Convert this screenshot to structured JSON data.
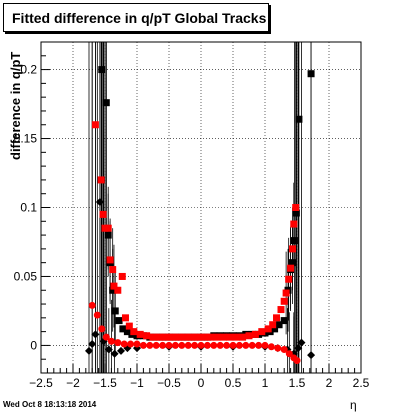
{
  "page": {
    "title": "Fitted difference in q/pT  Global Tracks",
    "footer_timestamp": "Wed Oct  8 18:13:18 2014"
  },
  "chart_data": {
    "type": "scatter",
    "title": "Fitted difference in q/pT  Global Tracks",
    "xlabel": "η",
    "ylabel": "difference in q/pT",
    "xlim": [
      -2.5,
      2.5
    ],
    "ylim": [
      -0.02,
      0.22
    ],
    "xticks": [
      -2.5,
      -2,
      -1.5,
      -1,
      -0.5,
      0,
      0.5,
      1,
      1.5,
      2,
      2.5
    ],
    "xtick_labels": [
      "−2.5",
      "−2",
      "−1.5",
      "−1",
      "−0.5",
      "0",
      "0.5",
      "1",
      "1.5",
      "2",
      "2.5"
    ],
    "yticks": [
      0,
      0.05,
      0.1,
      0.15,
      0.2
    ],
    "ytick_labels": [
      "0",
      "0.05",
      "0.1",
      "0.15",
      "0.2"
    ],
    "grid": true,
    "series": [
      {
        "color": "#000000",
        "marker": "square",
        "points": [
          [
            -1.55,
            0.2
          ],
          [
            -1.48,
            0.176
          ],
          [
            -1.45,
            0.08
          ],
          [
            -1.42,
            0.06
          ],
          [
            -1.38,
            0.04
          ],
          [
            -1.34,
            0.025
          ],
          [
            -1.28,
            0.018
          ],
          [
            -1.22,
            0.012
          ],
          [
            -1.15,
            0.01
          ],
          [
            -1.08,
            0.008
          ],
          [
            -1.0,
            0.007
          ],
          [
            -0.9,
            0.007
          ],
          [
            -0.8,
            0.006
          ],
          [
            -0.7,
            0.006
          ],
          [
            -0.6,
            0.006
          ],
          [
            -0.5,
            0.006
          ],
          [
            -0.4,
            0.006
          ],
          [
            -0.3,
            0.006
          ],
          [
            -0.2,
            0.006
          ],
          [
            -0.1,
            0.006
          ],
          [
            0.0,
            0.006
          ],
          [
            0.1,
            0.006
          ],
          [
            0.2,
            0.007
          ],
          [
            0.3,
            0.007
          ],
          [
            0.4,
            0.007
          ],
          [
            0.5,
            0.007
          ],
          [
            0.6,
            0.007
          ],
          [
            0.7,
            0.008
          ],
          [
            0.8,
            0.008
          ],
          [
            0.9,
            0.008
          ],
          [
            1.0,
            0.009
          ],
          [
            1.08,
            0.01
          ],
          [
            1.15,
            0.012
          ],
          [
            1.22,
            0.015
          ],
          [
            1.3,
            0.018
          ],
          [
            1.36,
            0.04
          ],
          [
            1.4,
            0.055
          ],
          [
            1.43,
            0.06
          ],
          [
            1.46,
            0.076
          ],
          [
            1.49,
            0.096
          ],
          [
            1.53,
            0.164
          ],
          [
            1.72,
            0.197
          ]
        ]
      },
      {
        "color": "#000000",
        "marker": "diamond",
        "points": [
          [
            -1.75,
            -0.004
          ],
          [
            -1.7,
            0.001
          ],
          [
            -1.65,
            0.008
          ],
          [
            -1.58,
            0.104
          ],
          [
            -1.52,
            0.003
          ],
          [
            -1.44,
            -0.003
          ],
          [
            -1.35,
            -0.006
          ],
          [
            -1.25,
            -0.004
          ],
          [
            -1.15,
            -0.002
          ],
          [
            -1.0,
            -0.002
          ],
          [
            -0.5,
            -0.001
          ],
          [
            0.0,
            -0.001
          ],
          [
            0.5,
            -0.001
          ],
          [
            1.0,
            -0.001
          ],
          [
            1.2,
            -0.002
          ],
          [
            1.35,
            -0.003
          ],
          [
            1.45,
            -0.006
          ],
          [
            1.52,
            -0.002
          ],
          [
            1.57,
            0.002
          ],
          [
            1.72,
            -0.007
          ]
        ]
      },
      {
        "color": "#ff0000",
        "marker": "square",
        "points": [
          [
            -1.65,
            0.16
          ],
          [
            -1.56,
            0.12
          ],
          [
            -1.53,
            0.095
          ],
          [
            -1.5,
            0.085
          ],
          [
            -1.45,
            0.085
          ],
          [
            -1.42,
            0.062
          ],
          [
            -1.38,
            0.055
          ],
          [
            -1.36,
            0.043
          ],
          [
            -1.3,
            0.04
          ],
          [
            -1.23,
            0.05
          ],
          [
            -1.18,
            0.02
          ],
          [
            -1.12,
            0.014
          ],
          [
            -1.05,
            0.01
          ],
          [
            -0.95,
            0.008
          ],
          [
            -0.85,
            0.007
          ],
          [
            -0.75,
            0.006
          ],
          [
            -0.65,
            0.006
          ],
          [
            -0.55,
            0.006
          ],
          [
            -0.45,
            0.006
          ],
          [
            -0.35,
            0.006
          ],
          [
            -0.25,
            0.006
          ],
          [
            -0.15,
            0.006
          ],
          [
            -0.05,
            0.006
          ],
          [
            0.05,
            0.006
          ],
          [
            0.15,
            0.006
          ],
          [
            0.25,
            0.006
          ],
          [
            0.35,
            0.006
          ],
          [
            0.45,
            0.006
          ],
          [
            0.55,
            0.006
          ],
          [
            0.65,
            0.006
          ],
          [
            0.75,
            0.007
          ],
          [
            0.85,
            0.008
          ],
          [
            0.95,
            0.01
          ],
          [
            1.05,
            0.012
          ],
          [
            1.12,
            0.015
          ],
          [
            1.18,
            0.02
          ],
          [
            1.25,
            0.026
          ],
          [
            1.3,
            0.032
          ],
          [
            1.33,
            0.038
          ],
          [
            1.37,
            0.048
          ],
          [
            1.4,
            0.056
          ],
          [
            1.43,
            0.07
          ],
          [
            1.45,
            0.088
          ],
          [
            1.48,
            0.1
          ]
        ]
      },
      {
        "color": "#ff0000",
        "marker": "circle",
        "points": [
          [
            -1.7,
            0.029
          ],
          [
            -1.62,
            0.022
          ],
          [
            -1.55,
            0.012
          ],
          [
            -1.48,
            0.006
          ],
          [
            -1.4,
            0.003
          ],
          [
            -1.3,
            0.002
          ],
          [
            -1.2,
            0.001
          ],
          [
            -1.1,
            0.001
          ],
          [
            -1.0,
            0.001
          ],
          [
            -0.9,
            0.0
          ],
          [
            -0.8,
            0.0
          ],
          [
            -0.7,
            0.0
          ],
          [
            -0.6,
            0.0
          ],
          [
            -0.5,
            0.0
          ],
          [
            -0.4,
            0.0
          ],
          [
            -0.3,
            0.0
          ],
          [
            -0.2,
            0.0
          ],
          [
            -0.1,
            0.0
          ],
          [
            0.0,
            0.0
          ],
          [
            0.1,
            0.0
          ],
          [
            0.2,
            0.0
          ],
          [
            0.3,
            0.0
          ],
          [
            0.4,
            0.0
          ],
          [
            0.5,
            0.0
          ],
          [
            0.6,
            0.0
          ],
          [
            0.7,
            0.0
          ],
          [
            0.8,
            0.0
          ],
          [
            0.9,
            0.0
          ],
          [
            1.0,
            0.0
          ],
          [
            1.1,
            -0.001
          ],
          [
            1.2,
            -0.002
          ],
          [
            1.3,
            -0.003
          ],
          [
            1.38,
            -0.006
          ],
          [
            1.45,
            -0.009
          ],
          [
            1.5,
            -0.011
          ]
        ]
      }
    ]
  }
}
